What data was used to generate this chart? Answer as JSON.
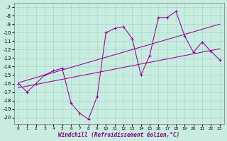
{
  "xlabel": "Windchill (Refroidissement éolien,°C)",
  "xlim_min": -0.5,
  "xlim_max": 23.5,
  "ylim_min": -20.8,
  "ylim_max": -6.5,
  "yticks": [
    -20,
    -19,
    -18,
    -17,
    -16,
    -15,
    -14,
    -13,
    -12,
    -11,
    -10,
    -9,
    -8,
    -7
  ],
  "xticks": [
    0,
    1,
    2,
    3,
    4,
    5,
    6,
    7,
    8,
    9,
    10,
    11,
    12,
    13,
    14,
    15,
    16,
    17,
    18,
    19,
    20,
    21,
    22,
    23
  ],
  "background_color": "#c8ece0",
  "grid_color": "#a8d8cc",
  "line_color": "#990099",
  "x": [
    0,
    1,
    2,
    3,
    4,
    5,
    6,
    7,
    8,
    9,
    10,
    11,
    12,
    13,
    14,
    15,
    16,
    17,
    18,
    19,
    20,
    21,
    22,
    23
  ],
  "line1": [
    -16.0,
    -17.0,
    -16.0,
    -15.0,
    -14.5,
    -14.2,
    -18.3,
    -19.5,
    -20.2,
    -17.5,
    -10.0,
    -9.5,
    -9.3,
    -10.7,
    -15.0,
    -12.7,
    -8.2,
    -8.2,
    -7.5,
    -10.4,
    -12.3,
    -11.1,
    -12.2,
    -13.2
  ],
  "line2": [
    -15.9,
    -15.6,
    -15.3,
    -15.0,
    -14.7,
    -14.4,
    -14.1,
    -13.8,
    -13.5,
    -13.2,
    -12.9,
    -12.6,
    -12.3,
    -12.0,
    -11.7,
    -11.4,
    -11.1,
    -10.8,
    -10.5,
    -10.2,
    -9.9,
    -9.6,
    -9.3,
    -9.0
  ],
  "line3": [
    -16.5,
    -16.3,
    -16.1,
    -15.9,
    -15.7,
    -15.5,
    -15.3,
    -15.1,
    -14.9,
    -14.7,
    -14.5,
    -14.3,
    -14.1,
    -13.9,
    -13.7,
    -13.5,
    -13.3,
    -13.1,
    -12.9,
    -12.7,
    -12.5,
    -12.3,
    -12.1,
    -11.9
  ]
}
